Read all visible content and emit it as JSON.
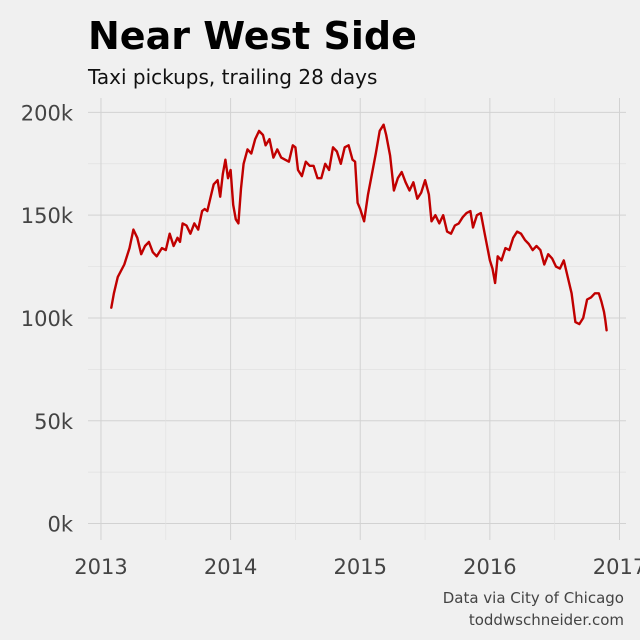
{
  "chart_data": {
    "type": "line",
    "title": "Near West Side",
    "subtitle": "Taxi pickups, trailing 28 days",
    "xlabel": "",
    "ylabel": "",
    "x_ticks": [
      "2013",
      "2014",
      "2015",
      "2016",
      "2017"
    ],
    "y_ticks": [
      "0k",
      "50k",
      "100k",
      "150k",
      "200k"
    ],
    "xlim": [
      2012.9,
      2017.05
    ],
    "ylim": [
      -8000,
      207000
    ],
    "grid": true,
    "legend": "none",
    "caption_lines": [
      "Data via City of Chicago",
      "toddwschneider.com"
    ],
    "series": [
      {
        "color": "#c00000",
        "points": [
          [
            2013.08,
            105000
          ],
          [
            2013.1,
            112000
          ],
          [
            2013.13,
            120000
          ],
          [
            2013.18,
            126000
          ],
          [
            2013.22,
            134000
          ],
          [
            2013.25,
            143000
          ],
          [
            2013.28,
            139000
          ],
          [
            2013.31,
            131000
          ],
          [
            2013.34,
            135000
          ],
          [
            2013.37,
            137000
          ],
          [
            2013.4,
            132000
          ],
          [
            2013.43,
            130000
          ],
          [
            2013.47,
            134000
          ],
          [
            2013.5,
            133000
          ],
          [
            2013.53,
            141000
          ],
          [
            2013.56,
            135000
          ],
          [
            2013.59,
            139000
          ],
          [
            2013.61,
            137000
          ],
          [
            2013.63,
            146000
          ],
          [
            2013.66,
            145000
          ],
          [
            2013.69,
            141000
          ],
          [
            2013.72,
            146000
          ],
          [
            2013.75,
            143000
          ],
          [
            2013.78,
            152000
          ],
          [
            2013.8,
            153000
          ],
          [
            2013.82,
            152000
          ],
          [
            2013.85,
            160000
          ],
          [
            2013.87,
            165000
          ],
          [
            2013.9,
            167000
          ],
          [
            2013.92,
            159000
          ],
          [
            2013.94,
            170000
          ],
          [
            2013.96,
            177000
          ],
          [
            2013.98,
            168000
          ],
          [
            2014.0,
            172000
          ],
          [
            2014.02,
            155000
          ],
          [
            2014.04,
            148000
          ],
          [
            2014.06,
            146000
          ],
          [
            2014.08,
            163000
          ],
          [
            2014.1,
            175000
          ],
          [
            2014.13,
            182000
          ],
          [
            2014.16,
            180000
          ],
          [
            2014.19,
            187000
          ],
          [
            2014.22,
            191000
          ],
          [
            2014.25,
            189000
          ],
          [
            2014.27,
            184000
          ],
          [
            2014.3,
            187000
          ],
          [
            2014.33,
            178000
          ],
          [
            2014.36,
            182000
          ],
          [
            2014.39,
            178000
          ],
          [
            2014.42,
            177000
          ],
          [
            2014.45,
            176000
          ],
          [
            2014.48,
            184000
          ],
          [
            2014.5,
            183000
          ],
          [
            2014.52,
            172000
          ],
          [
            2014.55,
            169000
          ],
          [
            2014.58,
            176000
          ],
          [
            2014.61,
            174000
          ],
          [
            2014.64,
            174000
          ],
          [
            2014.67,
            168000
          ],
          [
            2014.7,
            168000
          ],
          [
            2014.73,
            175000
          ],
          [
            2014.76,
            172000
          ],
          [
            2014.79,
            183000
          ],
          [
            2014.82,
            181000
          ],
          [
            2014.85,
            175000
          ],
          [
            2014.88,
            183000
          ],
          [
            2014.91,
            184000
          ],
          [
            2014.94,
            177000
          ],
          [
            2014.96,
            176000
          ],
          [
            2014.98,
            156000
          ],
          [
            2015.0,
            153000
          ],
          [
            2015.03,
            147000
          ],
          [
            2015.06,
            160000
          ],
          [
            2015.09,
            170000
          ],
          [
            2015.12,
            180000
          ],
          [
            2015.15,
            191000
          ],
          [
            2015.18,
            194000
          ],
          [
            2015.2,
            189000
          ],
          [
            2015.23,
            179000
          ],
          [
            2015.26,
            162000
          ],
          [
            2015.29,
            168000
          ],
          [
            2015.32,
            171000
          ],
          [
            2015.35,
            166000
          ],
          [
            2015.38,
            162000
          ],
          [
            2015.41,
            166000
          ],
          [
            2015.44,
            158000
          ],
          [
            2015.47,
            161000
          ],
          [
            2015.5,
            167000
          ],
          [
            2015.53,
            160000
          ],
          [
            2015.55,
            147000
          ],
          [
            2015.58,
            150000
          ],
          [
            2015.61,
            146000
          ],
          [
            2015.64,
            150000
          ],
          [
            2015.67,
            142000
          ],
          [
            2015.7,
            141000
          ],
          [
            2015.73,
            145000
          ],
          [
            2015.76,
            146000
          ],
          [
            2015.79,
            149000
          ],
          [
            2015.82,
            151000
          ],
          [
            2015.85,
            152000
          ],
          [
            2015.87,
            144000
          ],
          [
            2015.9,
            150000
          ],
          [
            2015.93,
            151000
          ],
          [
            2015.96,
            141000
          ],
          [
            2016.0,
            128000
          ],
          [
            2016.02,
            124000
          ],
          [
            2016.04,
            117000
          ],
          [
            2016.06,
            130000
          ],
          [
            2016.09,
            128000
          ],
          [
            2016.12,
            134000
          ],
          [
            2016.15,
            133000
          ],
          [
            2016.18,
            139000
          ],
          [
            2016.21,
            142000
          ],
          [
            2016.24,
            141000
          ],
          [
            2016.27,
            138000
          ],
          [
            2016.3,
            136000
          ],
          [
            2016.33,
            133000
          ],
          [
            2016.36,
            135000
          ],
          [
            2016.39,
            133000
          ],
          [
            2016.42,
            126000
          ],
          [
            2016.45,
            131000
          ],
          [
            2016.48,
            129000
          ],
          [
            2016.51,
            125000
          ],
          [
            2016.54,
            124000
          ],
          [
            2016.57,
            128000
          ],
          [
            2016.6,
            120000
          ],
          [
            2016.63,
            112000
          ],
          [
            2016.66,
            98000
          ],
          [
            2016.69,
            97000
          ],
          [
            2016.72,
            100000
          ],
          [
            2016.75,
            109000
          ],
          [
            2016.78,
            110000
          ],
          [
            2016.81,
            112000
          ],
          [
            2016.84,
            112000
          ],
          [
            2016.86,
            108000
          ],
          [
            2016.88,
            103000
          ],
          [
            2016.89,
            99000
          ],
          [
            2016.9,
            94000
          ]
        ]
      }
    ]
  }
}
